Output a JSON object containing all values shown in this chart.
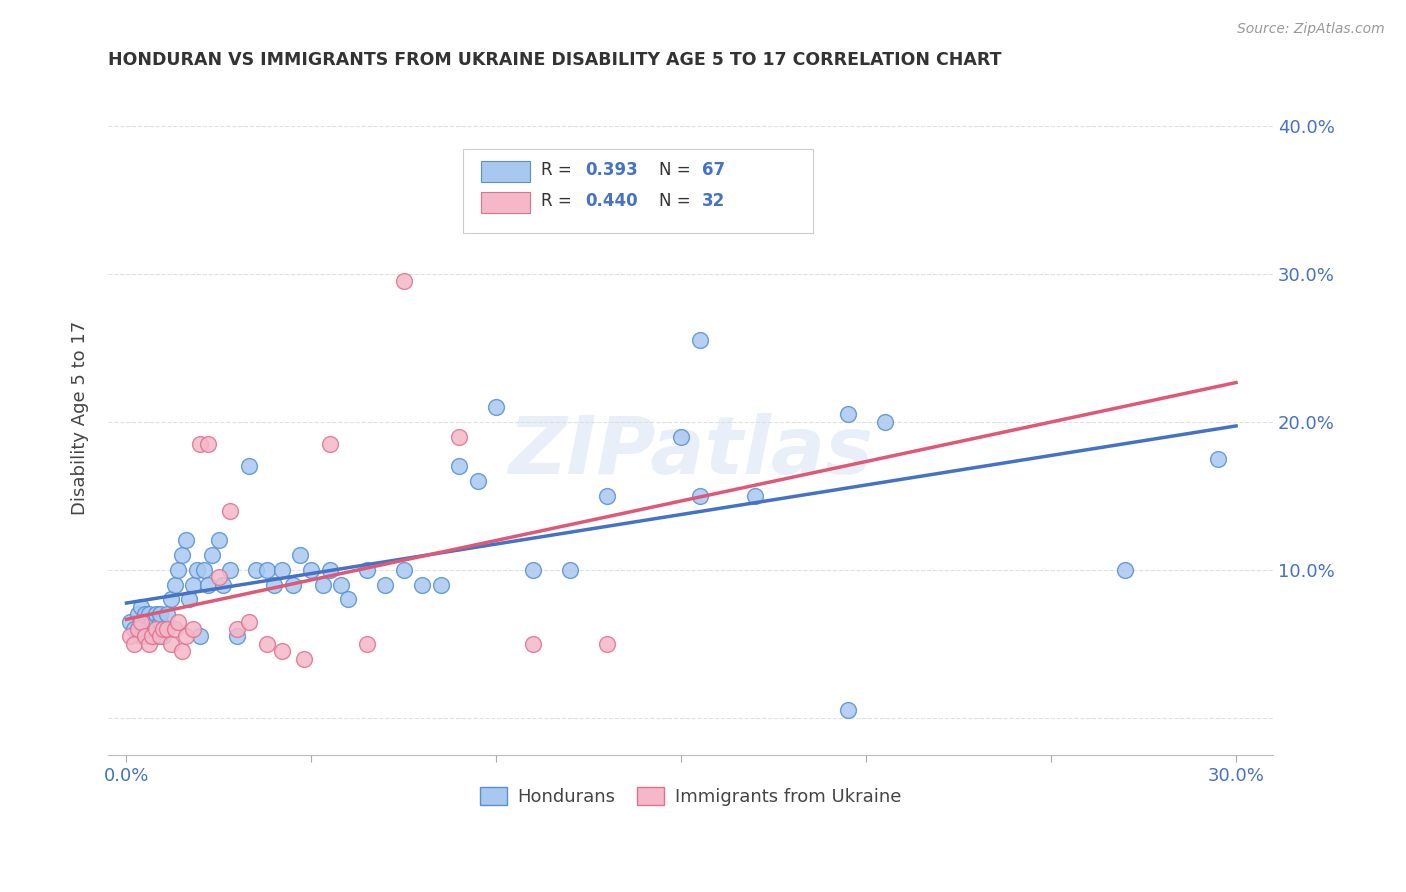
{
  "title": "HONDURAN VS IMMIGRANTS FROM UKRAINE DISABILITY AGE 5 TO 17 CORRELATION CHART",
  "source": "Source: ZipAtlas.com",
  "ylabel": "Disability Age 5 to 17",
  "xlim": [
    -0.005,
    0.31
  ],
  "ylim": [
    -0.025,
    0.43
  ],
  "blue_color": "#a8c8f0",
  "pink_color": "#f4b8c8",
  "blue_edge_color": "#5590d0",
  "pink_edge_color": "#e07090",
  "blue_line_color": "#4472c4",
  "pink_line_color": "#e05878",
  "dashed_line_color": "#cccccc",
  "grid_color": "#dddddd",
  "background_color": "#ffffff",
  "legend_R1": "0.393",
  "legend_N1": "67",
  "legend_R2": "0.440",
  "legend_N2": "32",
  "watermark": "ZIPatlas",
  "blue_N": 67,
  "pink_N": 32,
  "hondurans_x": [
    0.001,
    0.002,
    0.003,
    0.003,
    0.004,
    0.004,
    0.005,
    0.005,
    0.006,
    0.006,
    0.007,
    0.007,
    0.008,
    0.008,
    0.009,
    0.009,
    0.01,
    0.01,
    0.011,
    0.012,
    0.013,
    0.014,
    0.015,
    0.016,
    0.017,
    0.018,
    0.019,
    0.02,
    0.021,
    0.022,
    0.023,
    0.025,
    0.026,
    0.028,
    0.03,
    0.033,
    0.035,
    0.038,
    0.04,
    0.042,
    0.045,
    0.047,
    0.05,
    0.053,
    0.055,
    0.058,
    0.06,
    0.065,
    0.07,
    0.075,
    0.08,
    0.085,
    0.09,
    0.095,
    0.1,
    0.11,
    0.12,
    0.13,
    0.15,
    0.155,
    0.155,
    0.17,
    0.195,
    0.195,
    0.205,
    0.27,
    0.295
  ],
  "hondurans_y": [
    0.065,
    0.06,
    0.07,
    0.06,
    0.055,
    0.075,
    0.065,
    0.07,
    0.06,
    0.07,
    0.055,
    0.065,
    0.07,
    0.055,
    0.065,
    0.07,
    0.06,
    0.055,
    0.07,
    0.08,
    0.09,
    0.1,
    0.11,
    0.12,
    0.08,
    0.09,
    0.1,
    0.055,
    0.1,
    0.09,
    0.11,
    0.12,
    0.09,
    0.1,
    0.055,
    0.17,
    0.1,
    0.1,
    0.09,
    0.1,
    0.09,
    0.11,
    0.1,
    0.09,
    0.1,
    0.09,
    0.08,
    0.1,
    0.09,
    0.1,
    0.09,
    0.09,
    0.17,
    0.16,
    0.21,
    0.1,
    0.1,
    0.15,
    0.19,
    0.255,
    0.15,
    0.15,
    0.205,
    0.005,
    0.2,
    0.1,
    0.175
  ],
  "ukraine_x": [
    0.001,
    0.002,
    0.003,
    0.004,
    0.005,
    0.006,
    0.007,
    0.008,
    0.009,
    0.01,
    0.011,
    0.012,
    0.013,
    0.014,
    0.015,
    0.016,
    0.018,
    0.02,
    0.022,
    0.025,
    0.028,
    0.03,
    0.033,
    0.038,
    0.042,
    0.048,
    0.055,
    0.065,
    0.075,
    0.09,
    0.11,
    0.13
  ],
  "ukraine_y": [
    0.055,
    0.05,
    0.06,
    0.065,
    0.055,
    0.05,
    0.055,
    0.06,
    0.055,
    0.06,
    0.06,
    0.05,
    0.06,
    0.065,
    0.045,
    0.055,
    0.06,
    0.185,
    0.185,
    0.095,
    0.14,
    0.06,
    0.065,
    0.05,
    0.045,
    0.04,
    0.185,
    0.05,
    0.295,
    0.19,
    0.05,
    0.05
  ]
}
